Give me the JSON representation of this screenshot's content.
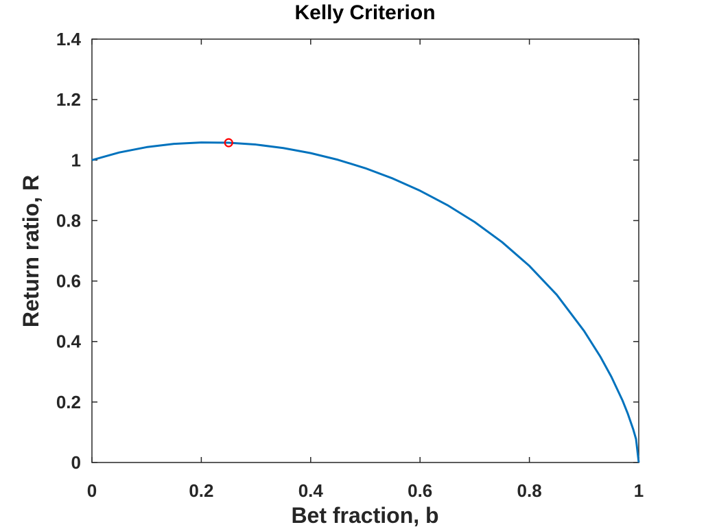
{
  "chart_data": {
    "type": "line",
    "title": "Kelly Criterion",
    "xlabel": "Bet fraction, b",
    "ylabel": "Return ratio, R",
    "xlim": [
      0,
      1
    ],
    "ylim": [
      0,
      1.4
    ],
    "xticks": [
      "0",
      "0.2",
      "0.4",
      "0.6",
      "0.8",
      "1"
    ],
    "yticks": [
      "0",
      "0.2",
      "0.4",
      "0.6",
      "0.8",
      "1",
      "1.2",
      "1.4"
    ],
    "grid": false,
    "series": [
      {
        "color": "#0072bd",
        "x": [
          0,
          0.05,
          0.1,
          0.15,
          0.2,
          0.25,
          0.3,
          0.35,
          0.4,
          0.45,
          0.5,
          0.55,
          0.6,
          0.65,
          0.7,
          0.75,
          0.8,
          0.85,
          0.9,
          0.93,
          0.95,
          0.97,
          0.98,
          0.99,
          0.995,
          1.0
        ],
        "y": [
          1.0,
          1.0252,
          1.0428,
          1.0537,
          1.0583,
          1.0574,
          1.0513,
          1.0398,
          1.0231,
          1.0009,
          0.9731,
          0.9392,
          0.8988,
          0.8511,
          0.795,
          0.7288,
          0.65,
          0.5546,
          0.435,
          0.3492,
          0.2831,
          0.2063,
          0.1612,
          0.1088,
          0.0776,
          0.0
        ]
      }
    ],
    "markers": [
      {
        "x": 0.25,
        "y": 1.0574,
        "color": "#ff0000",
        "shape": "circle"
      }
    ]
  }
}
